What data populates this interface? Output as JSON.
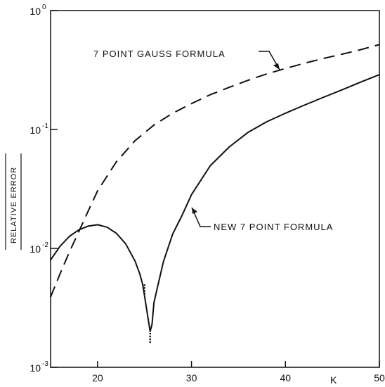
{
  "chart_data": {
    "type": "line",
    "xlabel": "K",
    "ylabel": "RELATIVE ERROR",
    "xlim": [
      15,
      50
    ],
    "ylim": [
      0.001,
      1
    ],
    "yscale": "log",
    "xticks": [
      "20",
      "30",
      "40",
      "50"
    ],
    "yticks": [
      {
        "base": "10",
        "exp": "-3"
      },
      {
        "base": "10",
        "exp": "-2"
      },
      {
        "base": "10",
        "exp": "-1"
      },
      {
        "base": "10",
        "exp": "0"
      }
    ],
    "grid": false,
    "series": [
      {
        "name": "7 POINT GAUSS FORMULA",
        "style": "dashed",
        "x": [
          15,
          16,
          17,
          18,
          19,
          20,
          22,
          24,
          26,
          28,
          30,
          32,
          34,
          36,
          38,
          40,
          42,
          44,
          46,
          48,
          50
        ],
        "y": [
          0.0039,
          0.0061,
          0.0093,
          0.0138,
          0.0206,
          0.0305,
          0.0534,
          0.0806,
          0.109,
          0.137,
          0.165,
          0.196,
          0.226,
          0.259,
          0.293,
          0.326,
          0.36,
          0.395,
          0.429,
          0.469,
          0.517
        ]
      },
      {
        "name": "NEW 7 POINT FORMULA",
        "style": "solid",
        "x": [
          15,
          16,
          17,
          18,
          19,
          20,
          21,
          22,
          23,
          24,
          24.5,
          24.8,
          25.0,
          25.6,
          25.8,
          26,
          27,
          28,
          29,
          30,
          32,
          34,
          36,
          38,
          40,
          42,
          44,
          46,
          48,
          50
        ],
        "y": [
          0.008,
          0.0104,
          0.0126,
          0.0143,
          0.0154,
          0.0158,
          0.0151,
          0.0134,
          0.0109,
          0.0078,
          0.0061,
          0.005,
          0.004,
          0.002,
          0.0023,
          0.0035,
          0.0077,
          0.0132,
          0.019,
          0.0283,
          0.0496,
          0.0711,
          0.0943,
          0.116,
          0.137,
          0.16,
          0.186,
          0.215,
          0.25,
          0.289
        ]
      }
    ],
    "annotations": [
      "7 POINT GAUSS FORMULA",
      "NEW 7 POINT FORMULA"
    ]
  }
}
